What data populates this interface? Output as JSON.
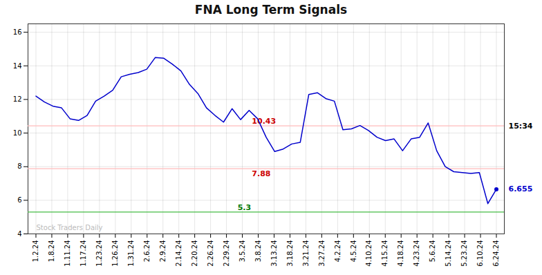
{
  "chart_data": {
    "type": "line",
    "title": "FNA Long Term Signals",
    "color": "#0000cc",
    "x": [
      0,
      0.537037,
      1.074074,
      1.611111,
      2.148148,
      2.685185,
      3.222222,
      3.759259,
      4.296296,
      4.833333,
      5.37037,
      5.907407,
      6.444444,
      6.981481,
      7.518519,
      8.055556,
      8.592593,
      9.12963,
      9.666667,
      10.203704,
      10.740741,
      11.277778,
      11.814815,
      12.351852,
      12.888889,
      13.425926,
      13.962963,
      14.5,
      15.037037,
      15.574074,
      16.111111,
      16.648148,
      17.185185,
      17.722222,
      18.259259,
      18.796296,
      19.333333,
      19.87037,
      20.407407,
      20.944444,
      21.481481,
      22.018519,
      22.555556,
      23.092593,
      23.62963,
      24.166667,
      24.703704,
      25.240741,
      25.777778,
      26.314815,
      26.851852,
      27.388889,
      27.925926,
      28.462963,
      29
    ],
    "values": [
      12.2,
      11.85,
      11.6,
      11.5,
      10.85,
      10.75,
      11.05,
      11.9,
      12.2,
      12.55,
      13.35,
      13.5,
      13.6,
      13.8,
      14.5,
      14.45,
      14.1,
      13.7,
      12.9,
      12.35,
      11.5,
      11.05,
      10.65,
      11.45,
      10.8,
      11.35,
      10.85,
      9.75,
      8.9,
      9.05,
      9.35,
      9.45,
      12.3,
      12.4,
      12.05,
      11.9,
      10.2,
      10.25,
      10.45,
      10.15,
      9.75,
      9.55,
      9.65,
      8.95,
      9.65,
      9.75,
      10.6,
      8.95,
      8.0,
      7.7,
      7.65,
      7.6,
      7.65,
      5.8,
      6.655
    ],
    "xlim": [
      -0.5,
      29.5
    ],
    "xticks": [
      {
        "value": 0,
        "label": "1.2.24"
      },
      {
        "value": 1,
        "label": "1.8.24"
      },
      {
        "value": 2,
        "label": "1.11.24"
      },
      {
        "value": 3,
        "label": "1.17.24"
      },
      {
        "value": 4,
        "label": "1.23.24"
      },
      {
        "value": 5,
        "label": "1.26.24"
      },
      {
        "value": 6,
        "label": "1.31.24"
      },
      {
        "value": 7,
        "label": "2.6.24"
      },
      {
        "value": 8,
        "label": "2.9.24"
      },
      {
        "value": 9,
        "label": "2.14.24"
      },
      {
        "value": 10,
        "label": "2.20.24"
      },
      {
        "value": 11,
        "label": "2.26.24"
      },
      {
        "value": 12,
        "label": "2.29.24"
      },
      {
        "value": 13,
        "label": "3.5.24"
      },
      {
        "value": 14,
        "label": "3.8.24"
      },
      {
        "value": 15,
        "label": "3.13.24"
      },
      {
        "value": 16,
        "label": "3.18.24"
      },
      {
        "value": 17,
        "label": "3.21.24"
      },
      {
        "value": 18,
        "label": "3.27.24"
      },
      {
        "value": 19,
        "label": "4.2.24"
      },
      {
        "value": 20,
        "label": "4.5.24"
      },
      {
        "value": 21,
        "label": "4.10.24"
      },
      {
        "value": 22,
        "label": "4.15.24"
      },
      {
        "value": 23,
        "label": "4.18.24"
      },
      {
        "value": 24,
        "label": "4.23.24"
      },
      {
        "value": 25,
        "label": "5.6.24"
      },
      {
        "value": 26,
        "label": "5.14.24"
      },
      {
        "value": 27,
        "label": "5.23.24"
      },
      {
        "value": 28,
        "label": "6.10.24"
      },
      {
        "value": 29,
        "label": "6.24.24"
      }
    ],
    "ylim": [
      4,
      16.5
    ],
    "yticks": [
      4,
      6,
      8,
      10,
      12,
      14,
      16
    ],
    "grid": true,
    "hlines": [
      {
        "value": 10.43,
        "label": "10.43",
        "color": "#ffbbbb",
        "label_color": "#cc0000"
      },
      {
        "value": 7.88,
        "label": "7.88",
        "color": "#ffbbbb",
        "label_color": "#cc0000"
      },
      {
        "value": 5.3,
        "label": "5.3",
        "color": "#44bb44",
        "label_color": "#007700"
      }
    ],
    "annotations": [
      {
        "text": "Stock Traders Daily",
        "color": "#bbbbbb"
      },
      {
        "text": "15:34",
        "color": "#000000"
      },
      {
        "text": "6.655",
        "value": 6.655,
        "color": "#0000cc"
      }
    ]
  }
}
